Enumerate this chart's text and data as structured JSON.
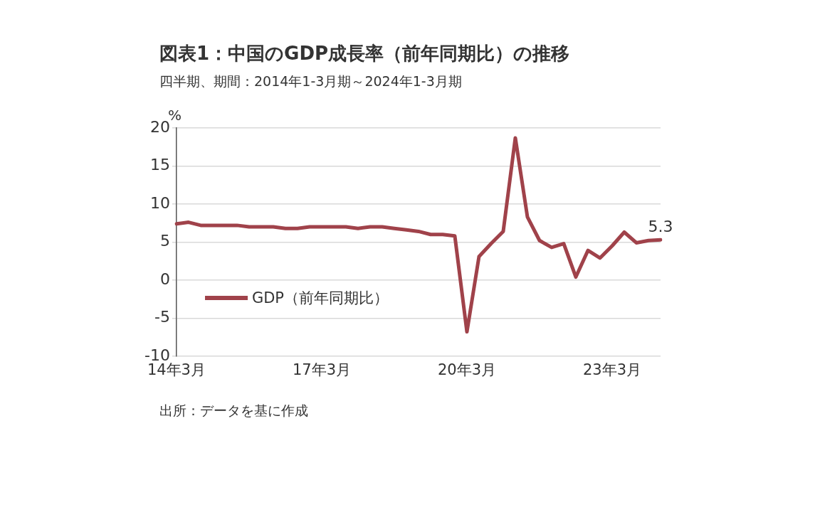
{
  "chart_data": {
    "type": "line",
    "title": "図表1：中国のGDP成長率（前年同期比）の推移",
    "subtitle": "四半期、期間：2014年1-3月期～2024年1-3月期",
    "ylabel": "%",
    "annotations": [
      "出所：データを基に作成"
    ],
    "categories": [
      "14年3月",
      null,
      null,
      null,
      null,
      null,
      null,
      null,
      null,
      null,
      null,
      null,
      "17年3月",
      null,
      null,
      null,
      null,
      null,
      null,
      null,
      null,
      null,
      null,
      null,
      "20年3月",
      null,
      null,
      null,
      null,
      null,
      null,
      null,
      null,
      null,
      null,
      null,
      "23年3月",
      null,
      null,
      null,
      null
    ],
    "series": [
      {
        "name": "GDP（前年同期比）",
        "color": "#a0424a",
        "values": [
          7.4,
          7.6,
          7.2,
          7.2,
          7.2,
          7.2,
          7.0,
          7.0,
          7.0,
          6.8,
          6.8,
          7.0,
          7.0,
          7.0,
          7.0,
          6.8,
          7.0,
          7.0,
          6.8,
          6.6,
          6.4,
          6.0,
          6.0,
          5.8,
          -6.8,
          3.1,
          4.8,
          6.4,
          18.7,
          8.3,
          5.2,
          4.3,
          4.8,
          0.4,
          3.9,
          2.9,
          4.5,
          6.3,
          4.9,
          5.2,
          5.3
        ],
        "value_labels": [
          null,
          null,
          null,
          null,
          null,
          null,
          null,
          null,
          null,
          null,
          null,
          null,
          null,
          null,
          null,
          null,
          null,
          null,
          null,
          null,
          null,
          null,
          null,
          null,
          null,
          null,
          null,
          null,
          null,
          null,
          null,
          null,
          null,
          null,
          null,
          null,
          null,
          null,
          null,
          null,
          "5.3"
        ]
      }
    ],
    "ylim": [
      -10,
      20
    ],
    "yticks": [
      -10,
      -5,
      0,
      5,
      10,
      15,
      20
    ],
    "grid": "y",
    "legend": "bottom left",
    "marker": "none",
    "line_style": "solid"
  }
}
